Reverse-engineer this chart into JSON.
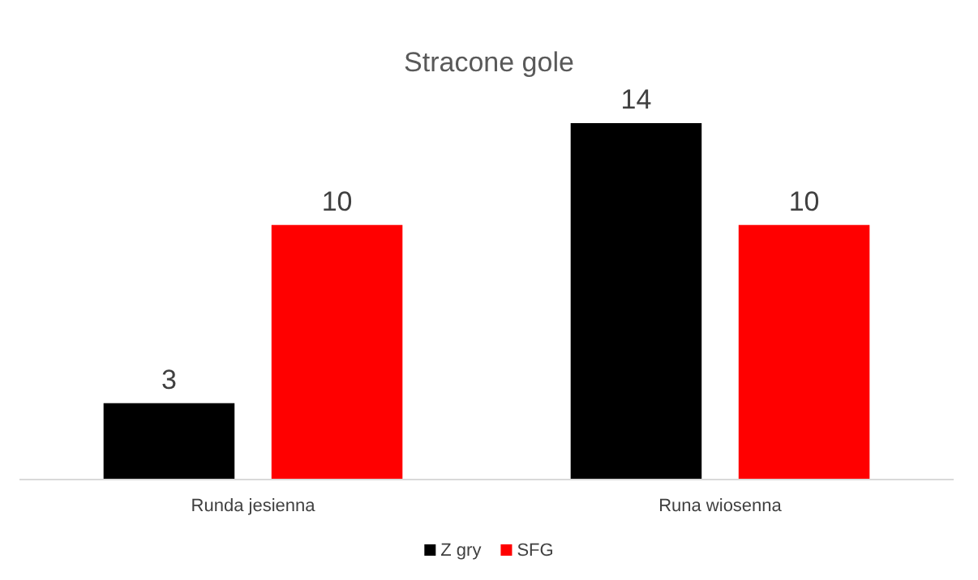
{
  "chart_data": {
    "type": "bar",
    "title": "Stracone gole",
    "categories": [
      "Runda jesienna",
      "Runa wiosenna"
    ],
    "series": [
      {
        "name": "Z gry",
        "color": "#000000",
        "values": [
          3,
          14
        ]
      },
      {
        "name": "SFG",
        "color": "#ff0000",
        "values": [
          10,
          10
        ]
      }
    ],
    "data_labels": true,
    "legend": "bottom",
    "tick_labels": "x"
  }
}
